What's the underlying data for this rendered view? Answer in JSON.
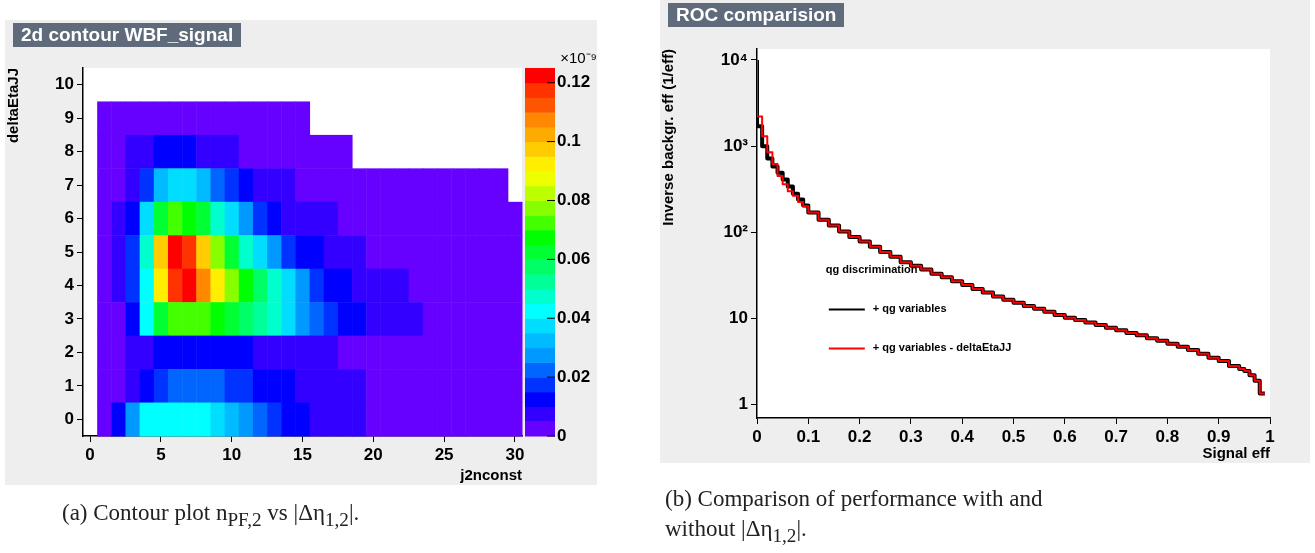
{
  "chart_data": [
    {
      "type": "heatmap",
      "title": "2d contour WBF_signal",
      "xlabel": "j2nconst",
      "ylabel": "deltaEtaJJ",
      "categories": [
        "0",
        null,
        null,
        null,
        null,
        "5",
        null,
        null,
        null,
        null,
        "10",
        null,
        null,
        null,
        null,
        "15",
        null,
        null,
        null,
        null,
        "20",
        null,
        null,
        null,
        null,
        "25",
        null,
        null,
        null,
        null,
        "30"
      ],
      "y_categories": [
        "10",
        "9",
        "8",
        "7",
        "6",
        "5",
        "4",
        "3",
        "2",
        "1",
        "0"
      ],
      "clim": [
        0,
        0.125
      ],
      "cticks": [
        0,
        0.02,
        0.04,
        0.06,
        0.08,
        0.1,
        0.12
      ],
      "cells": [
        [
          null,
          null,
          null,
          null,
          null,
          null,
          null,
          null,
          null,
          null,
          null,
          null,
          null,
          null,
          null,
          null,
          null,
          null,
          null,
          null,
          null,
          null,
          null,
          null,
          null,
          null,
          null,
          null,
          null,
          null,
          null
        ],
        [
          null,
          0,
          0,
          0,
          0,
          0,
          0,
          0,
          0,
          0,
          0,
          0,
          0,
          0,
          0,
          0,
          null,
          null,
          null,
          null,
          null,
          null,
          null,
          null,
          null,
          null,
          null,
          null,
          null,
          null,
          null
        ],
        [
          null,
          0,
          0.002,
          0.005,
          0.008,
          0.01,
          0.011,
          0.01,
          0.008,
          0.006,
          0.005,
          0.003,
          0,
          0,
          0,
          0,
          0,
          0,
          0,
          null,
          null,
          null,
          null,
          null,
          null,
          null,
          null,
          null,
          null,
          null,
          null
        ],
        [
          null,
          0,
          0.003,
          0.008,
          0.018,
          0.03,
          0.035,
          0.035,
          0.03,
          0.022,
          0.015,
          0.01,
          0.008,
          0.006,
          0.005,
          0.003,
          0,
          0,
          0,
          0,
          0,
          0,
          0,
          0,
          0,
          0,
          0,
          0,
          0,
          0,
          null
        ],
        [
          null,
          0,
          0.005,
          0.013,
          0.035,
          0.06,
          0.07,
          0.068,
          0.06,
          0.048,
          0.035,
          0.025,
          0.018,
          0.012,
          0.009,
          0.007,
          0.006,
          0.005,
          0.003,
          0,
          0,
          0,
          0,
          0,
          0,
          0,
          0,
          0,
          0,
          0,
          0
        ],
        [
          null,
          0,
          0.005,
          0.015,
          0.045,
          0.095,
          0.12,
          0.115,
          0.095,
          0.075,
          0.06,
          0.045,
          0.035,
          0.025,
          0.018,
          0.012,
          0.01,
          0.008,
          0.006,
          0.005,
          0.004,
          0,
          0,
          0,
          0,
          0,
          0,
          0,
          0,
          0,
          0
        ],
        [
          null,
          0,
          0.005,
          0.015,
          0.04,
          0.09,
          0.115,
          0.125,
          0.105,
          0.09,
          0.075,
          0.065,
          0.055,
          0.045,
          0.035,
          0.025,
          0.018,
          0.012,
          0.01,
          0.008,
          0.007,
          0.006,
          0.005,
          0.004,
          0,
          0,
          0,
          0,
          0,
          0,
          0
        ],
        [
          null,
          0,
          0.004,
          0.01,
          0.04,
          0.06,
          0.07,
          0.07,
          0.07,
          0.065,
          0.06,
          0.055,
          0.05,
          0.045,
          0.035,
          0.025,
          0.02,
          0.015,
          0.012,
          0.01,
          0.008,
          0.007,
          0.006,
          0.006,
          0.004,
          0,
          0,
          0,
          0,
          0,
          0
        ],
        [
          null,
          0,
          0.003,
          0.006,
          0.008,
          0.011,
          0.012,
          0.013,
          0.013,
          0.012,
          0.012,
          0.011,
          0.009,
          0.008,
          0.007,
          0.006,
          0.006,
          0.005,
          0.003,
          0,
          0,
          0,
          0,
          0,
          0,
          0,
          0,
          0,
          0,
          0,
          0
        ],
        [
          null,
          0,
          0.004,
          0.008,
          0.013,
          0.018,
          0.022,
          0.024,
          0.024,
          0.022,
          0.019,
          0.015,
          0.013,
          0.011,
          0.01,
          0.008,
          0.007,
          0.007,
          0.006,
          0.006,
          0.004,
          0,
          0,
          0,
          0,
          0,
          0,
          0,
          0,
          0,
          0
        ],
        [
          null,
          0.002,
          0.012,
          0.025,
          0.04,
          0.042,
          0.043,
          0.043,
          0.042,
          0.038,
          0.033,
          0.028,
          0.022,
          0.018,
          0.014,
          0.01,
          0.008,
          0.007,
          0.006,
          0.006,
          0.004,
          0,
          0,
          0,
          0,
          0,
          0,
          0,
          0,
          0,
          0
        ]
      ],
      "annotations": [
        "×10⁻⁹",
        "(a) Contour plot n$_{PF,2}$ vs |Δη$_{1,2}$|."
      ]
    },
    {
      "type": "step",
      "title": "ROC comparision",
      "xlabel": "Signal eff",
      "ylabel": "Inverse backgr. eff (1/eff)",
      "legend_title": "qg discrimination",
      "legend": "left",
      "log": true,
      "xlim": [
        0,
        1
      ],
      "xticks": [
        0,
        0.1,
        0.2,
        0.3,
        0.4,
        0.5,
        0.6,
        0.7,
        0.8,
        0.9,
        1
      ],
      "ylim": [
        0.71,
        13400
      ],
      "yticks": [
        1,
        10,
        {
          "value": 100,
          "label": "10²"
        },
        {
          "value": 1000,
          "label": "10³"
        },
        {
          "value": 10000,
          "label": "10⁴"
        }
      ],
      "x": [
        0,
        0.01,
        0.02,
        0.03,
        0.04,
        0.05,
        0.06,
        0.07,
        0.08,
        0.09,
        0.1,
        0.12,
        0.14,
        0.16,
        0.18,
        0.2,
        0.22,
        0.24,
        0.26,
        0.28,
        0.3,
        0.32,
        0.34,
        0.36,
        0.38,
        0.4,
        0.42,
        0.44,
        0.46,
        0.48,
        0.5,
        0.52,
        0.54,
        0.56,
        0.58,
        0.6,
        0.62,
        0.64,
        0.66,
        0.68,
        0.7,
        0.72,
        0.74,
        0.76,
        0.78,
        0.8,
        0.82,
        0.84,
        0.86,
        0.88,
        0.9,
        0.92,
        0.94,
        0.95,
        0.96,
        0.97,
        0.98,
        0.99
      ],
      "series": [
        {
          "name": "+ qg variables",
          "color": "#000000",
          "values": [
            10000,
            1700,
            1000,
            720,
            580,
            490,
            410,
            340,
            280,
            240,
            205,
            170,
            140,
            120,
            102,
            88,
            78,
            68,
            59,
            52,
            45,
            41,
            37,
            33,
            30,
            27,
            24.5,
            22,
            20,
            18,
            16.5,
            15.2,
            14,
            13,
            12,
            11,
            10.2,
            9.6,
            9,
            8.4,
            7.8,
            7.3,
            6.8,
            6.4,
            5.9,
            5.5,
            5.1,
            4.7,
            4.3,
            3.9,
            3.5,
            3.2,
            2.8,
            2.6,
            2.45,
            2.2,
            1.9,
            1.35
          ]
        },
        {
          "name": "+ qg variables - deltaEtaJJ",
          "color": "#ff0000",
          "values": [
            10000,
            2200,
            1300,
            850,
            620,
            450,
            360,
            300,
            265,
            225,
            200,
            170,
            140,
            120,
            102,
            88,
            78,
            68,
            59,
            52,
            45,
            41,
            37,
            33,
            30,
            27,
            24.5,
            22,
            20,
            18,
            16.5,
            15.2,
            14,
            13,
            12,
            11,
            10.2,
            9.6,
            9,
            8.4,
            7.8,
            7.3,
            6.8,
            6.4,
            5.9,
            5.5,
            5.1,
            4.7,
            4.3,
            3.9,
            3.5,
            3.2,
            2.8,
            2.6,
            2.45,
            2.2,
            1.9,
            1.35
          ]
        }
      ],
      "annotations": [
        "(b) Comparison of performance with and without |Δη$_{1,2}$|."
      ]
    }
  ]
}
